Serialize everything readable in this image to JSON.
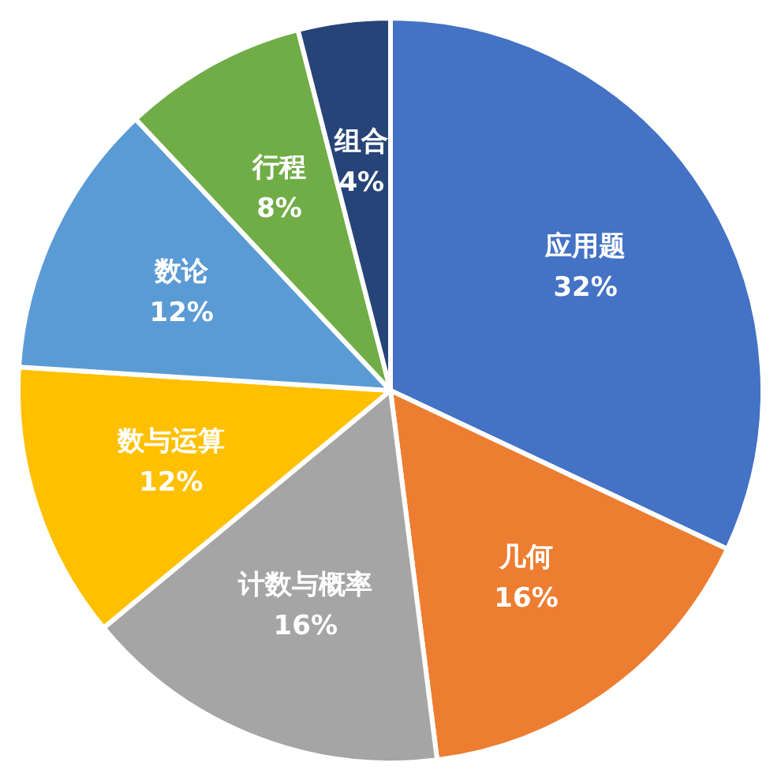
{
  "chart_data": {
    "type": "pie",
    "categories": [
      "应用题",
      "几何",
      "计数与概率",
      "数与运算",
      "数论",
      "行程",
      "组合"
    ],
    "values": [
      32,
      16,
      16,
      12,
      12,
      8,
      4
    ],
    "colors": [
      "#4472c4",
      "#ed7d31",
      "#a5a5a5",
      "#ffc000",
      "#5b9bd5",
      "#70ad47",
      "#264478"
    ],
    "value_labels": [
      "32%",
      "16%",
      "16%",
      "12%",
      "12%",
      "8%",
      "4%"
    ],
    "legend": false
  }
}
